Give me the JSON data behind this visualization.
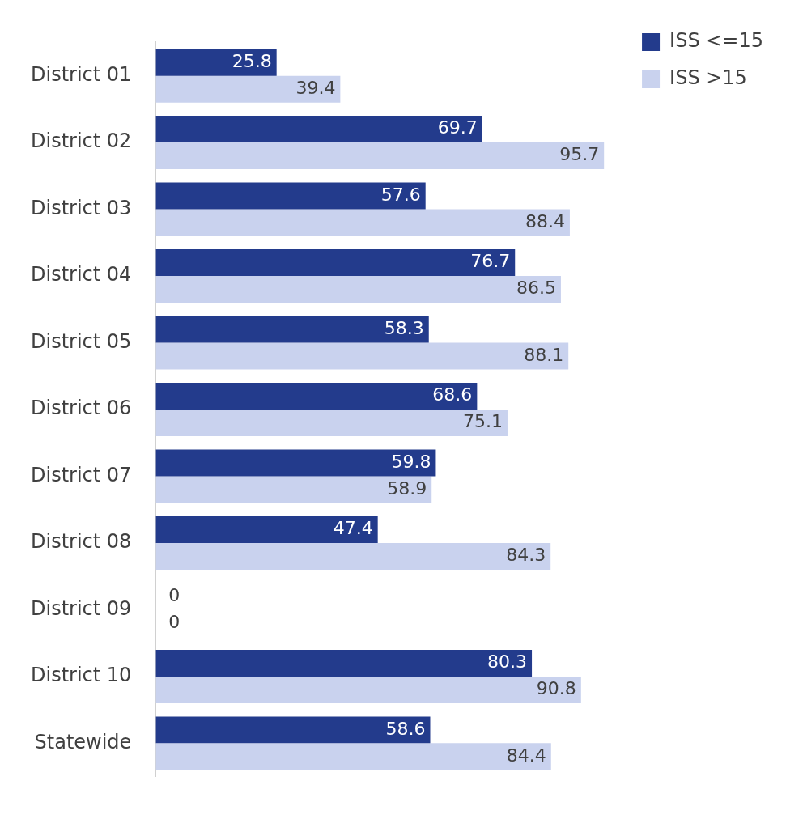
{
  "chart_data": {
    "type": "bar",
    "orientation": "horizontal",
    "categories": [
      "District 01",
      "District 02",
      "District 03",
      "District 04",
      "District 05",
      "District 06",
      "District 07",
      "District 08",
      "District 09",
      "District 10",
      "Statewide"
    ],
    "series": [
      {
        "name": "ISS <=15",
        "color": "#233b8c",
        "values": [
          25.8,
          69.7,
          57.6,
          76.7,
          58.3,
          68.6,
          59.8,
          47.4,
          0,
          80.3,
          58.6
        ]
      },
      {
        "name": "ISS >15",
        "color": "#c9d2ee",
        "values": [
          39.4,
          95.7,
          88.4,
          86.5,
          88.1,
          75.1,
          58.9,
          84.3,
          0,
          90.8,
          84.4
        ]
      }
    ],
    "data_labels": true,
    "legend": "top right"
  }
}
